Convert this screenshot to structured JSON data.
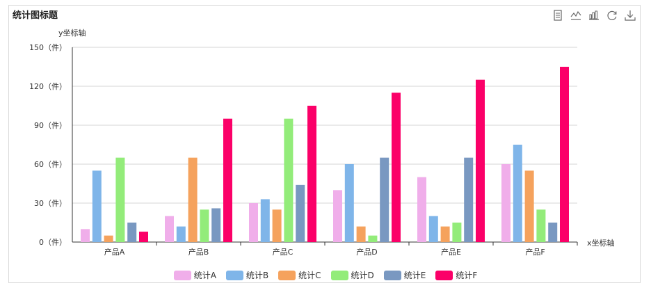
{
  "chart_data": {
    "type": "bar",
    "title": "统计图标题",
    "xlabel": "x坐标轴",
    "ylabel": "y坐标轴",
    "ylim": [
      0,
      150
    ],
    "yticks": [
      0,
      30,
      60,
      90,
      120,
      150
    ],
    "ytick_suffix": "（件）",
    "categories": [
      "产品A",
      "产品B",
      "产品C",
      "产品D",
      "产品E",
      "产品F"
    ],
    "series": [
      {
        "name": "统计A",
        "color": "#f0aeea",
        "values": [
          10,
          20,
          30,
          40,
          50,
          60
        ]
      },
      {
        "name": "统计B",
        "color": "#7fb5e9",
        "values": [
          55,
          12,
          33,
          60,
          20,
          75
        ]
      },
      {
        "name": "统计C",
        "color": "#f5a25d",
        "values": [
          5,
          65,
          25,
          12,
          12,
          55
        ]
      },
      {
        "name": "统计D",
        "color": "#93ec7a",
        "values": [
          65,
          25,
          95,
          5,
          15,
          25
        ]
      },
      {
        "name": "统计E",
        "color": "#7998c1",
        "values": [
          15,
          26,
          44,
          65,
          65,
          15
        ]
      },
      {
        "name": "统计F",
        "color": "#fb0068",
        "values": [
          8,
          95,
          105,
          115,
          125,
          135
        ]
      }
    ],
    "grid": true,
    "legend_position": "bottom"
  },
  "toolbox": {
    "icons": [
      "data-view-icon",
      "line-switch-icon",
      "bar-switch-icon",
      "restore-icon",
      "download-icon"
    ]
  }
}
